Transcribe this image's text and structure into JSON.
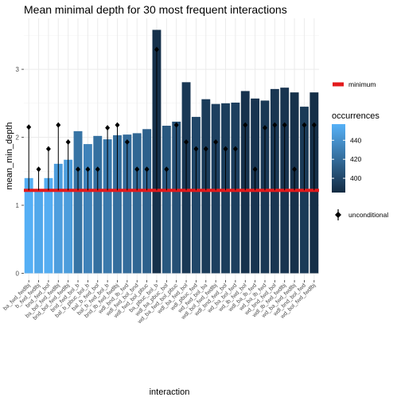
{
  "chart_data": {
    "type": "bar",
    "title": "Mean minimal depth for 30 most frequent interactions",
    "xlabel": "interaction",
    "ylabel": "mean_min_depth",
    "ylim": [
      -0.1,
      3.75
    ],
    "yticks": [
      0,
      1,
      2,
      3
    ],
    "grid": true,
    "legend_position": "right",
    "minimum_line": {
      "label": "minimum",
      "value": 1.22,
      "color": "#e31a1c"
    },
    "fill_legend": {
      "title": "occurrences",
      "ticks": [
        400,
        420,
        440
      ],
      "range": [
        385,
        457
      ],
      "low_color": "#132b43",
      "high_color": "#56b1f7"
    },
    "points_legend": {
      "label": "unconditional"
    },
    "categories": [
      "ba_fwd_fwdlbj",
      "b_fwd_fwdlbj",
      "bnd_fwd_bol",
      "ba_bol_fwd_fwdlbj",
      "bnd_bol_fwd_fwdlbj",
      "bnd_fwd_bol_b",
      "bal_b_pbuc_bol_b",
      "bal_b_fwd_bol",
      "bal_b_fwd_bol_b",
      "bnd_lb_fwd_fwdlbj",
      "wdl_bnd_lb_fwd",
      "wdl_fwd_bol_bnd",
      "wdl_fwd_bol_pbuc",
      "ba_pbuc_bol_b",
      "wdl_ba_pbuc_bol",
      "wd_ba_fwd_bol_pbuc",
      "wdl_ba_fwd_bol",
      "wdl_pbuc_fwd",
      "wd_fwd_bol_ba",
      "wdl_bol_fwd_fwdlbj",
      "wdl_bnd_fwd_bol",
      "wd_ba_bol_fwd",
      "wd_lb_fwd_bol",
      "wdl_ba_lb_fwd",
      "wd_ba_lb_fwd",
      "wd_bnd_fwd_bol",
      "wdl_lb_fwd_fwdlbj",
      "wd_ba_fwd_fwdlbj",
      "wdl_bnd_bol_fwd",
      "wd_bol_fwd_fwdlbj"
    ],
    "series": [
      {
        "values": [
          1.4,
          1.22,
          1.4,
          1.61,
          1.67,
          2.09,
          1.9,
          2.02,
          1.97,
          2.03,
          2.04,
          2.06,
          2.12,
          3.58,
          2.17,
          2.23,
          2.81,
          2.3,
          2.56,
          2.49,
          2.5,
          2.51,
          2.68,
          2.57,
          2.54,
          2.71,
          2.73,
          2.66,
          2.45,
          2.66
        ]
      },
      {
        "values": [
          456,
          452,
          455,
          447,
          446,
          424,
          432,
          422,
          427,
          421,
          420,
          417,
          414,
          388,
          409,
          405,
          392,
          400,
          394,
          396,
          395,
          396,
          389,
          390,
          392,
          391,
          390,
          388,
          393,
          387
        ]
      },
      {
        "values": [
          2.15,
          1.53,
          1.83,
          2.18,
          1.93,
          1.53,
          1.53,
          1.53,
          2.14,
          2.18,
          1.93,
          1.53,
          1.53,
          3.29,
          1.53,
          2.18,
          1.93,
          1.83,
          1.83,
          1.93,
          1.83,
          1.83,
          2.18,
          1.53,
          2.14,
          2.18,
          2.18,
          1.53,
          2.18,
          2.18
        ]
      }
    ]
  }
}
